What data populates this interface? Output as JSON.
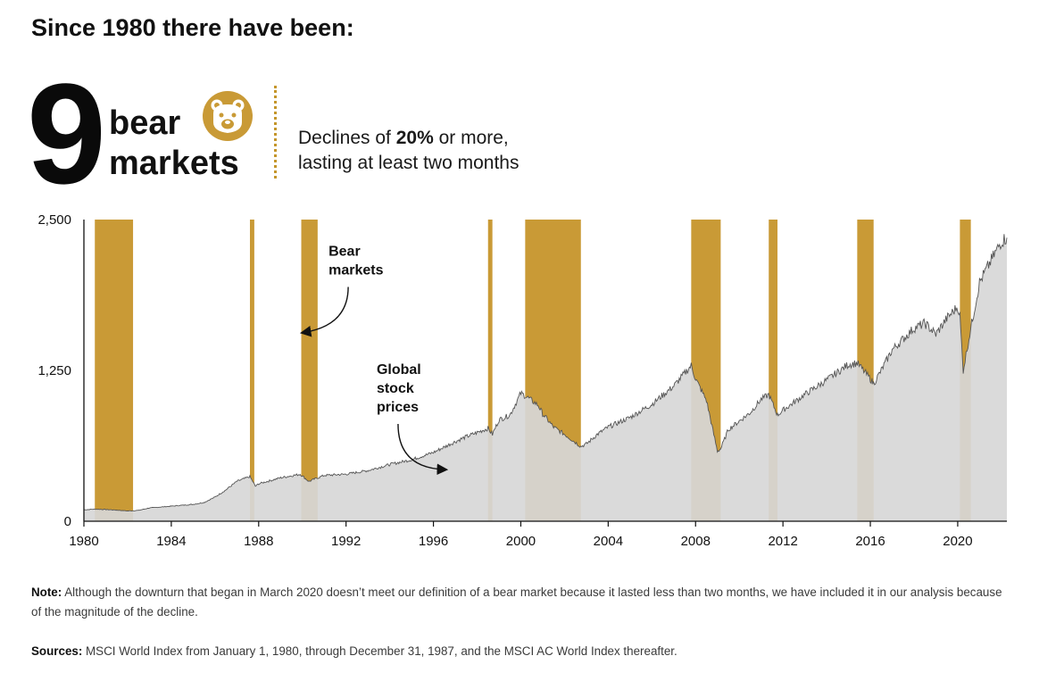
{
  "header": {
    "title": "Since 1980 there have been:",
    "count": "9",
    "bear_word": "bear",
    "markets_word": "markets",
    "definition_prefix": "Declines of ",
    "definition_bold": "20%",
    "definition_suffix": " or more,",
    "definition_line2": "lasting at least two months"
  },
  "colors": {
    "gold": "#c99a36",
    "area": "#d7d7d7",
    "line": "#555555",
    "text": "#111111"
  },
  "footer": {
    "note_label": "Note:",
    "note_text": " Although the downturn that began in March 2020 doesn’t meet our definition of a bear market because it lasted less than two months, we have included it in our analysis because of the magnitude of the decline.",
    "sources_label": "Sources:",
    "sources_text": " MSCI World Index from January 1, 1980, through December 31, 1987, and the MSCI AC World Index thereafter."
  },
  "chart_data": {
    "type": "area",
    "title": "",
    "xlabel": "",
    "ylabel": "",
    "xlim": [
      1980,
      2022.25
    ],
    "ylim": [
      0,
      2500
    ],
    "x_ticks": [
      1980,
      1984,
      1988,
      1992,
      1996,
      2000,
      2004,
      2008,
      2012,
      2016,
      2020
    ],
    "x_tick_labels": [
      "1980",
      "1984",
      "1988",
      "1992",
      "1996",
      "2000",
      "2004",
      "2008",
      "2012",
      "2016",
      "2020"
    ],
    "y_ticks": [
      0,
      1250,
      2500
    ],
    "y_tick_labels": [
      "0",
      "1,250",
      "2,500"
    ],
    "bear_markets": [
      {
        "start": 1980.5,
        "end": 1982.25
      },
      {
        "start": 1987.6,
        "end": 1987.8
      },
      {
        "start": 1989.95,
        "end": 1990.7
      },
      {
        "start": 1998.5,
        "end": 1998.7
      },
      {
        "start": 2000.2,
        "end": 2002.75
      },
      {
        "start": 2007.8,
        "end": 2009.15
      },
      {
        "start": 2011.35,
        "end": 2011.75
      },
      {
        "start": 2015.4,
        "end": 2016.15
      },
      {
        "start": 2020.1,
        "end": 2020.6
      }
    ],
    "series": [
      {
        "name": "Global stock prices",
        "x": [
          1980,
          1980.5,
          1981,
          1981.5,
          1982,
          1982.5,
          1983,
          1984,
          1985,
          1985.5,
          1986,
          1986.5,
          1987,
          1987.6,
          1987.85,
          1988,
          1989,
          1989.9,
          1990.3,
          1990.7,
          1991,
          1992,
          1993,
          1994,
          1995,
          1996,
          1997,
          1997.5,
          1998.5,
          1998.7,
          1999,
          1999.5,
          2000,
          2000.2,
          2000.8,
          2001,
          2001.5,
          2002,
          2002.75,
          2003,
          2003.5,
          2004,
          2005,
          2006,
          2007,
          2007.8,
          2008,
          2008.5,
          2009,
          2009.15,
          2009.5,
          2010,
          2010.5,
          2011,
          2011.35,
          2011.75,
          2012,
          2013,
          2014,
          2015,
          2015.4,
          2016,
          2016.15,
          2016.5,
          2017,
          2018,
          2018.5,
          2019,
          2019.5,
          2020,
          2020.1,
          2020.25,
          2020.6,
          2021,
          2021.5,
          2022,
          2022.25
        ],
        "values": [
          95,
          100,
          97,
          92,
          85,
          90,
          110,
          125,
          140,
          155,
          200,
          260,
          330,
          370,
          290,
          310,
          360,
          390,
          330,
          360,
          380,
          390,
          420,
          470,
          510,
          570,
          660,
          700,
          770,
          720,
          840,
          880,
          1060,
          1040,
          960,
          890,
          780,
          720,
          620,
          640,
          720,
          780,
          860,
          970,
          1120,
          1290,
          1180,
          1000,
          580,
          600,
          760,
          830,
          900,
          1010,
          1050,
          880,
          920,
          1050,
          1170,
          1300,
          1310,
          1180,
          1140,
          1250,
          1420,
          1600,
          1640,
          1550,
          1680,
          1780,
          1700,
          1250,
          1600,
          1980,
          2150,
          2320,
          2350
        ]
      }
    ],
    "annotations": [
      {
        "text_lines": [
          "Bear",
          "markets"
        ],
        "x": 1991.2,
        "y": 2200
      },
      {
        "text_lines": [
          "Global",
          "stock",
          "prices"
        ],
        "x": 1993.4,
        "y": 1220
      }
    ]
  }
}
